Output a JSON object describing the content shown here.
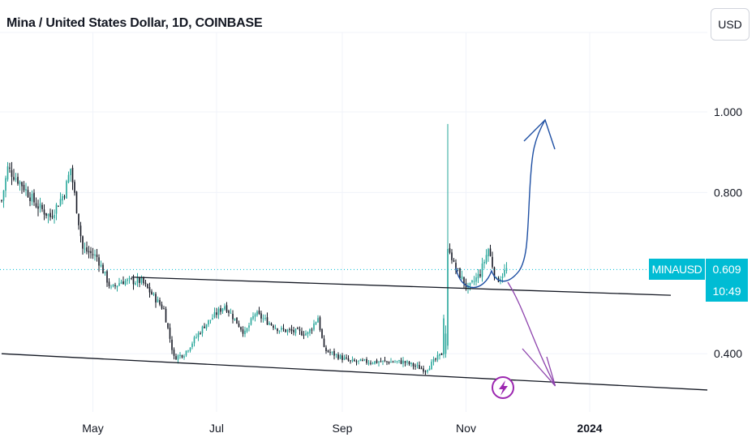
{
  "header": {
    "title": "Mina / United States Dollar, 1D, COINBASE",
    "currency_label": "USD"
  },
  "price_tag": {
    "symbol": "MINAUSD",
    "price": "0.609",
    "countdown": "10:49",
    "color": "#00bcd4"
  },
  "icons": {
    "lightning": "lightning-icon"
  },
  "colors": {
    "up": "#26a69a",
    "down": "#131722",
    "drawing_up": "#1e4fa3",
    "drawing_down": "#8e44ad",
    "trendline": "#131722",
    "grid": "#f0f3fa",
    "axis_text": "#131722"
  },
  "chart_data": {
    "type": "candlestick",
    "title": "Mina / United States Dollar, 1D, COINBASE",
    "xlabel": "",
    "ylabel": "",
    "x_tick_labels": [
      "May",
      "Jul",
      "Sep",
      "Nov",
      "2024"
    ],
    "y_tick_labels": [
      "1.000",
      "0.800",
      "0.400"
    ],
    "y_ticks": [
      1.0,
      0.8,
      0.4
    ],
    "ylim": [
      0.27,
      1.18
    ],
    "xlim": [
      "2023-03-17",
      "2024-02-28"
    ],
    "last_price": 0.609,
    "grid": true,
    "series": [
      {
        "type": "candlestick",
        "key_points": [
          {
            "date": "2023-03-17",
            "close": 0.78
          },
          {
            "date": "2023-03-20",
            "close": 0.86
          },
          {
            "date": "2023-03-27",
            "close": 0.82
          },
          {
            "date": "2023-04-03",
            "close": 0.77
          },
          {
            "date": "2023-04-10",
            "close": 0.74
          },
          {
            "date": "2023-04-17",
            "close": 0.8
          },
          {
            "date": "2023-04-20",
            "close": 0.86
          },
          {
            "date": "2023-04-26",
            "close": 0.66
          },
          {
            "date": "2023-05-03",
            "close": 0.64
          },
          {
            "date": "2023-05-10",
            "close": 0.56
          },
          {
            "date": "2023-05-15",
            "close": 0.58
          },
          {
            "date": "2023-05-25",
            "close": 0.58
          },
          {
            "date": "2023-06-05",
            "close": 0.51
          },
          {
            "date": "2023-06-10",
            "close": 0.39
          },
          {
            "date": "2023-06-15",
            "close": 0.4
          },
          {
            "date": "2023-06-25",
            "close": 0.47
          },
          {
            "date": "2023-07-05",
            "close": 0.52
          },
          {
            "date": "2023-07-15",
            "close": 0.45
          },
          {
            "date": "2023-07-20",
            "close": 0.5
          },
          {
            "date": "2023-08-01",
            "close": 0.46
          },
          {
            "date": "2023-08-15",
            "close": 0.45
          },
          {
            "date": "2023-08-20",
            "close": 0.49
          },
          {
            "date": "2023-08-23",
            "close": 0.41
          },
          {
            "date": "2023-09-05",
            "close": 0.38
          },
          {
            "date": "2023-10-01",
            "close": 0.38
          },
          {
            "date": "2023-10-12",
            "close": 0.36
          },
          {
            "date": "2023-10-20",
            "close": 0.4
          },
          {
            "date": "2023-10-23",
            "close": 0.68
          },
          {
            "date": "2023-10-26",
            "close": 0.62
          },
          {
            "date": "2023-11-02",
            "close": 0.56
          },
          {
            "date": "2023-11-08",
            "close": 0.6
          },
          {
            "date": "2023-11-12",
            "close": 0.66
          },
          {
            "date": "2023-11-16",
            "close": 0.58
          },
          {
            "date": "2023-11-21",
            "close": 0.609
          }
        ]
      }
    ],
    "annotations": [
      {
        "type": "trendline",
        "name": "upper",
        "points": [
          [
            "2023-05-20",
            0.59
          ],
          [
            "2024-02-10",
            0.545
          ]
        ]
      },
      {
        "type": "trendline",
        "name": "lower",
        "points": [
          [
            "2023-03-17",
            0.4
          ],
          [
            "2024-02-28",
            0.31
          ]
        ]
      },
      {
        "type": "freehand-arrow",
        "direction": "up",
        "target": [
          "2023-12-10",
          0.98
        ]
      },
      {
        "type": "freehand-arrow",
        "direction": "down",
        "target": [
          "2023-12-15",
          0.32
        ]
      }
    ]
  }
}
